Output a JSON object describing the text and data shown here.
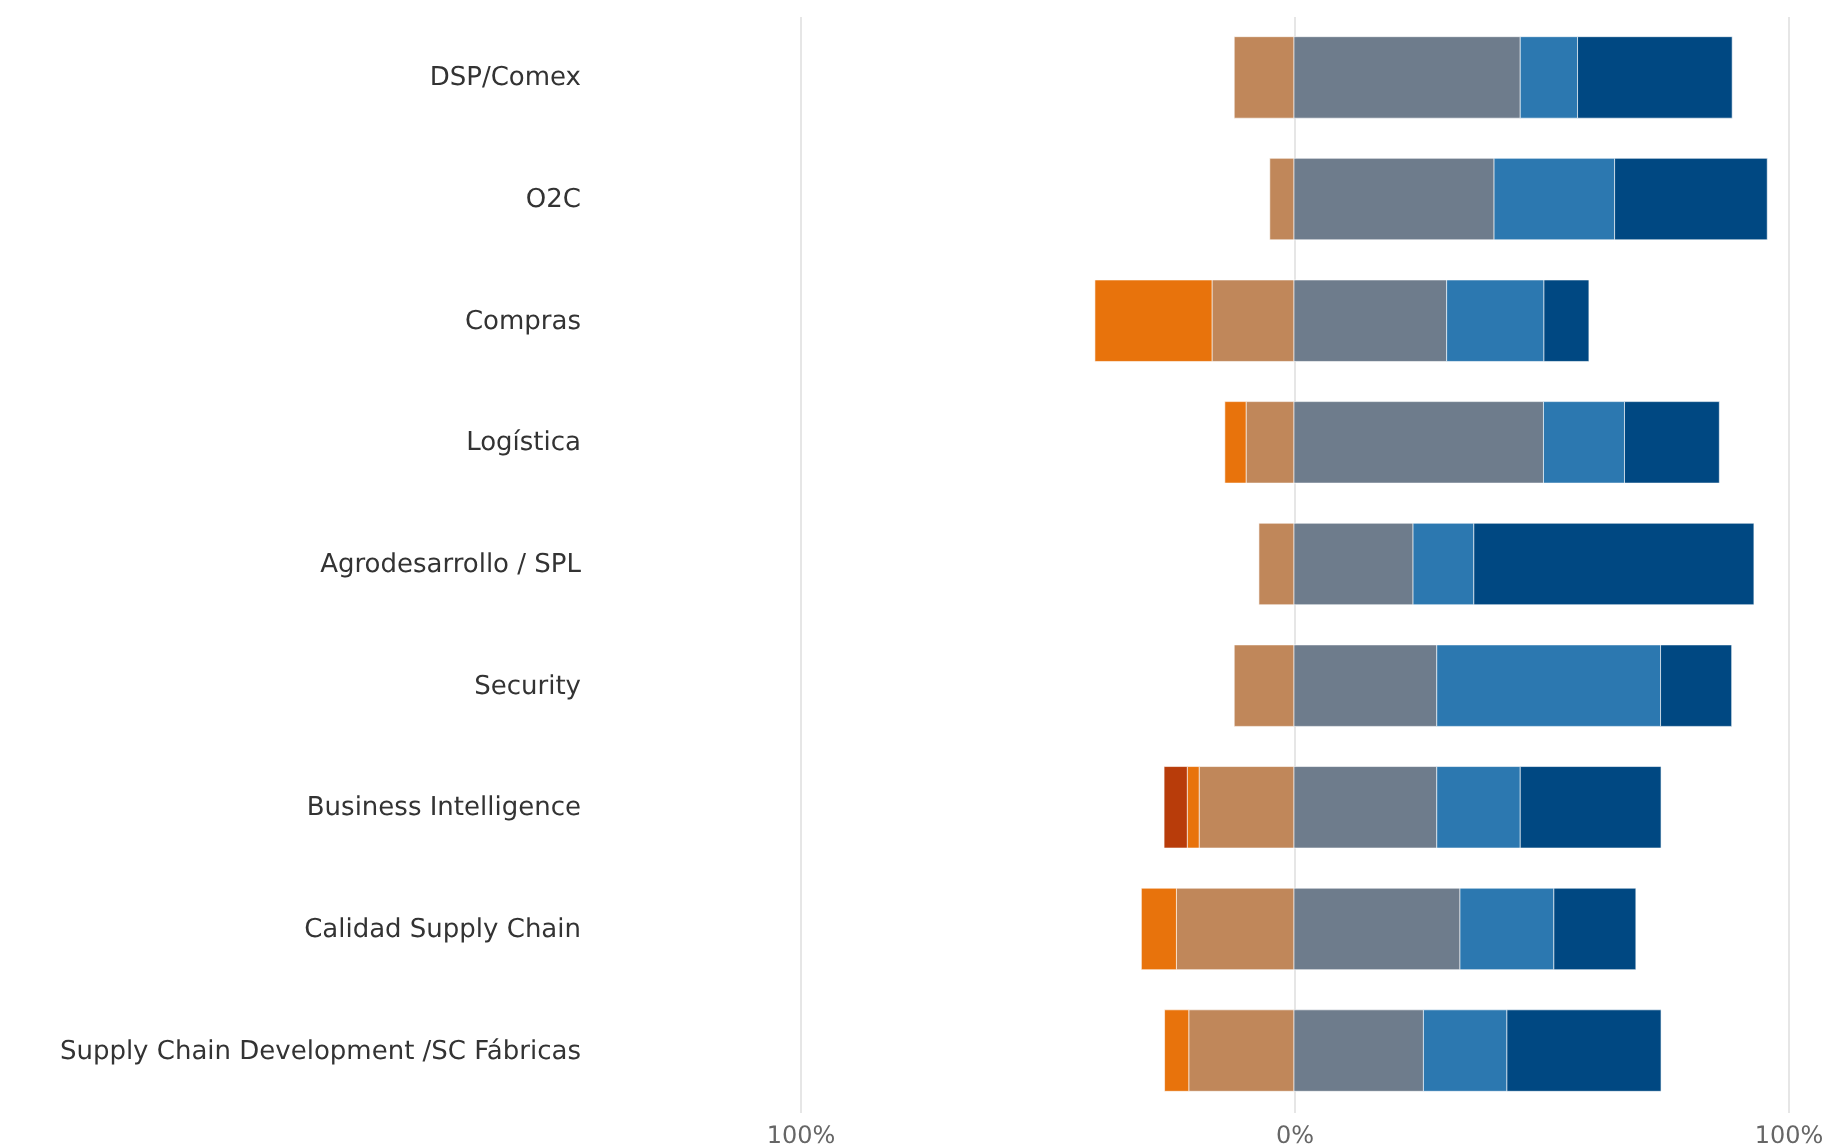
{
  "chart_data": {
    "type": "bar",
    "orientation": "horizontal",
    "stacked": true,
    "categories": [
      "DSP/Comex",
      "O2C",
      "Compras",
      "Logística",
      "Agrodesarrollo / SPL",
      "Security",
      "Business Intelligence",
      "Calidad Supply Chain",
      "Supply Chain Development /SC Fábricas"
    ],
    "series": [
      {
        "color": "#c0875a",
        "values": [
          -12.1,
          -4.9,
          -16.6,
          -9.7,
          -7.1,
          -12.1,
          -19.2,
          -23.8,
          -21.3
        ]
      },
      {
        "color": "#e8730c",
        "values": [
          null,
          null,
          -23.7,
          -4.3,
          null,
          null,
          -2.4,
          -7.1,
          -4.9
        ]
      },
      {
        "color": "#b83c0a",
        "values": [
          null,
          null,
          null,
          null,
          null,
          null,
          -4.7,
          null,
          null
        ]
      },
      {
        "color": "#6e7c8c",
        "values": [
          45.8,
          40.5,
          30.9,
          50.5,
          24.1,
          28.9,
          28.9,
          33.6,
          26.2
        ]
      },
      {
        "color": "#2c78b0",
        "values": [
          11.6,
          24.4,
          19.7,
          16.4,
          12.3,
          45.3,
          16.9,
          19.0,
          16.9
        ]
      },
      {
        "color": "#004882",
        "values": [
          31.3,
          30.9,
          9.1,
          19.2,
          56.7,
          14.4,
          28.5,
          16.6,
          31.2
        ]
      }
    ],
    "xlim": [
      -100,
      100
    ],
    "xticks": [
      {
        "value": -100,
        "label": "100%"
      },
      {
        "value": 0,
        "label": "0%"
      },
      {
        "value": 100,
        "label": "100%"
      }
    ],
    "grid": "x"
  }
}
